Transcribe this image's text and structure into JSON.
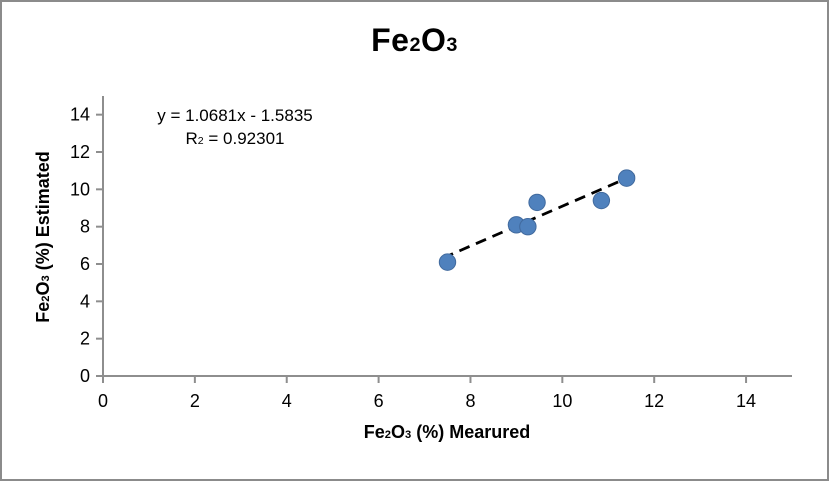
{
  "window": {
    "background": "#ffffff",
    "border_color": "#8b8b8b"
  },
  "chart_data": {
    "type": "scatter",
    "title": "Fe₂O₃",
    "xlabel": "Fe₂O₃ (%) Mearured",
    "ylabel": "Fe₂O₃ (%) Estimated",
    "points": [
      {
        "x": 7.5,
        "y": 6.1
      },
      {
        "x": 9.0,
        "y": 8.1
      },
      {
        "x": 9.25,
        "y": 8.0
      },
      {
        "x": 9.45,
        "y": 9.3
      },
      {
        "x": 10.85,
        "y": 9.4
      },
      {
        "x": 11.4,
        "y": 10.6
      }
    ],
    "trendline": {
      "type": "linear",
      "slope": 1.0681,
      "intercept": -1.5835,
      "equation": "y = 1.0681x - 1.5835",
      "r2_label": "R² = 0.92301",
      "r_squared": 0.92301,
      "x_start": 7.4,
      "x_end": 11.6,
      "style": "dashed",
      "color": "#000000"
    },
    "xlim": [
      0,
      15
    ],
    "ylim": [
      0,
      15
    ],
    "x_ticks": [
      0,
      2,
      4,
      6,
      8,
      10,
      12,
      14
    ],
    "y_ticks": [
      0,
      2,
      4,
      6,
      8,
      10,
      12,
      14
    ],
    "grid": false,
    "legend": false,
    "marker_color": "#4f81bd",
    "marker_edge": "#416a9e",
    "axis_color": "#8e8e8e",
    "text_color": "#000000"
  }
}
